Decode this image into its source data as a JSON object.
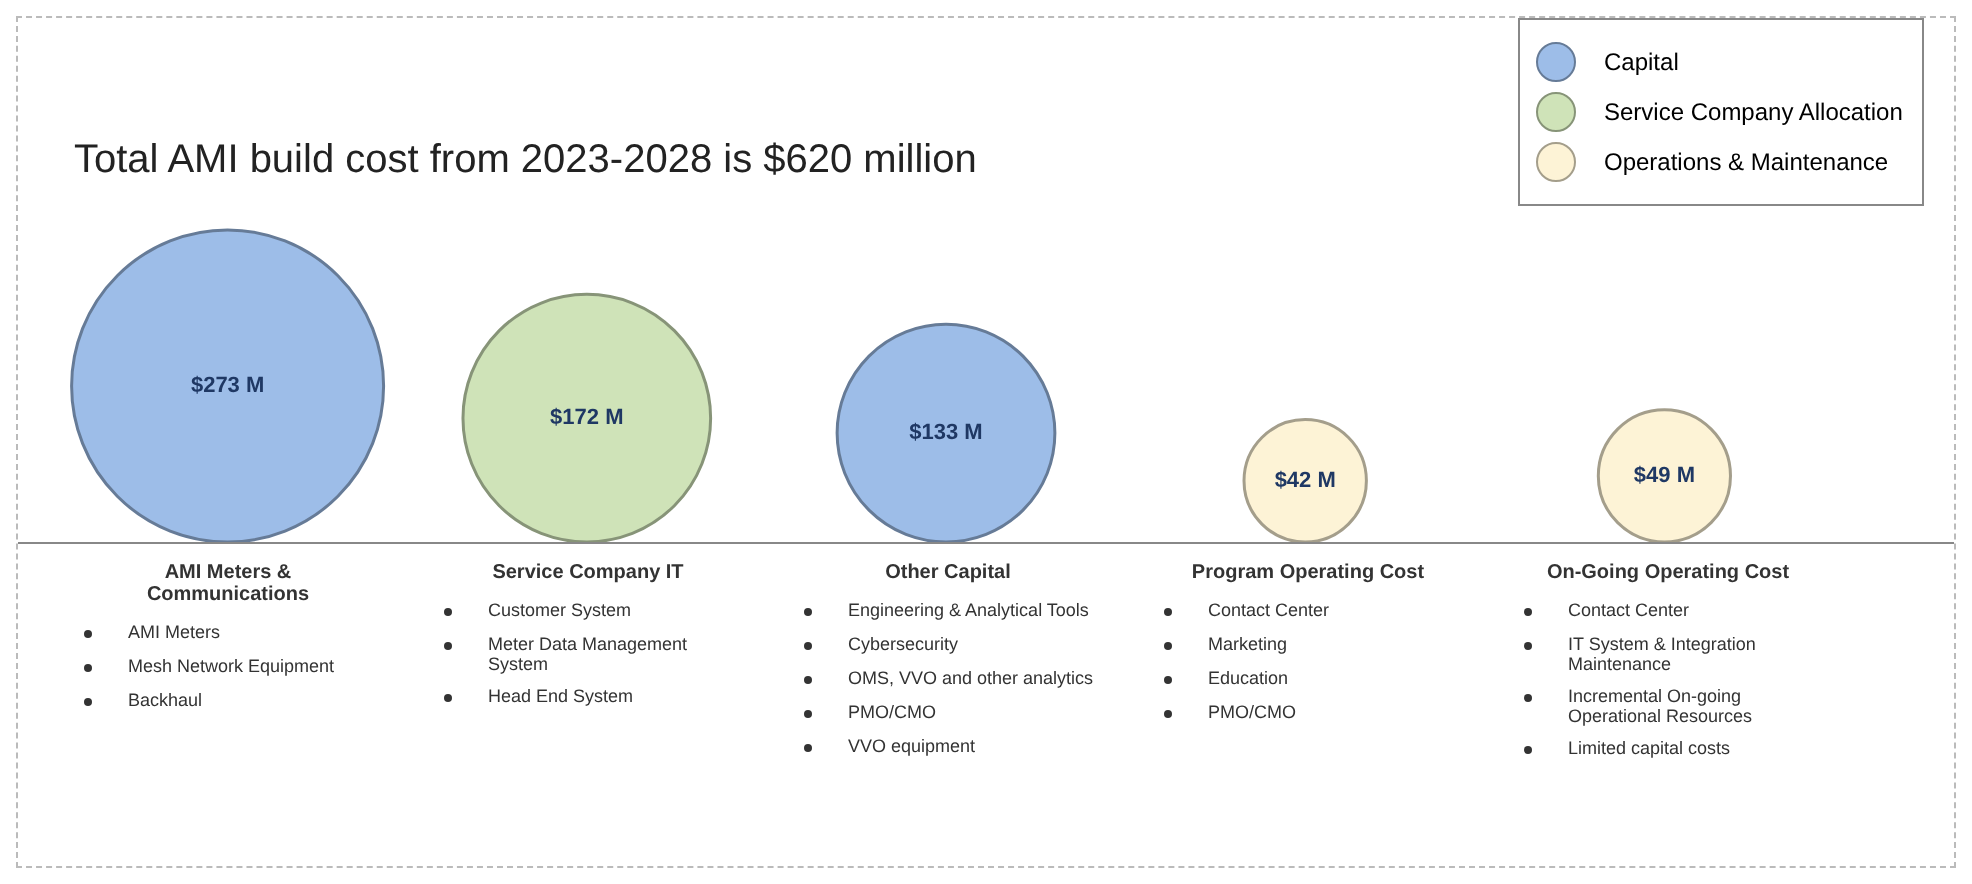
{
  "chart_data": {
    "type": "other",
    "title": "Total AMI build cost from 2023-2028 is $620 million",
    "categories": [
      "AMI Meters & Communications",
      "Service Company IT",
      "Other Capital",
      "Program Operating Cost",
      "On-Going Operating Cost"
    ],
    "series": [
      {
        "name": "Capital",
        "color": "#9dbde8",
        "values": [
          273,
          null,
          133,
          null,
          null
        ],
        "value_labels": [
          "$273 M",
          null,
          "$133 M",
          null,
          null
        ]
      },
      {
        "name": "Service Company Allocation",
        "color": "#cfe3b8",
        "values": [
          null,
          172,
          null,
          null,
          null
        ],
        "value_labels": [
          null,
          "$172 M",
          null,
          null,
          null
        ]
      },
      {
        "name": "Operations & Maintenance",
        "color": "#fdf3d6",
        "values": [
          null,
          null,
          null,
          42,
          49
        ],
        "value_labels": [
          null,
          null,
          null,
          "$42 M",
          "$49 M"
        ]
      }
    ],
    "legend": "top right",
    "annotations": [
      {
        "text": "AMI Meters",
        "x": "AMI Meters & Communications"
      },
      {
        "text": "Mesh Network Equipment",
        "x": "AMI Meters & Communications"
      },
      {
        "text": "Backhaul",
        "x": "AMI Meters & Communications"
      },
      {
        "text": "Customer System",
        "x": "Service Company IT"
      },
      {
        "text": "Meter Data Management System",
        "x": "Service Company IT"
      },
      {
        "text": "Head End System",
        "x": "Service Company IT"
      },
      {
        "text": "Engineering & Analytical Tools",
        "x": "Other Capital"
      },
      {
        "text": "Cybersecurity",
        "x": "Other Capital"
      },
      {
        "text": "OMS, VVO and other analytics",
        "x": "Other Capital"
      },
      {
        "text": "PMO/CMO",
        "x": "Other Capital"
      },
      {
        "text": "VVO equipment",
        "x": "Other Capital"
      },
      {
        "text": "Contact Center",
        "x": "Program Operating Cost"
      },
      {
        "text": "Marketing",
        "x": "Program Operating Cost"
      },
      {
        "text": "Education",
        "x": "Program Operating Cost"
      },
      {
        "text": "PMO/CMO",
        "x": "Program Operating Cost"
      },
      {
        "text": "Contact Center",
        "x": "On-Going Operating Cost"
      },
      {
        "text": "IT System & Integration Maintenance",
        "x": "On-Going Operating Cost"
      },
      {
        "text": "Incremental On-going Operational Resources",
        "x": "On-Going Operating Cost"
      },
      {
        "text": "Limited capital costs",
        "x": "On-Going Operating Cost"
      }
    ]
  }
}
